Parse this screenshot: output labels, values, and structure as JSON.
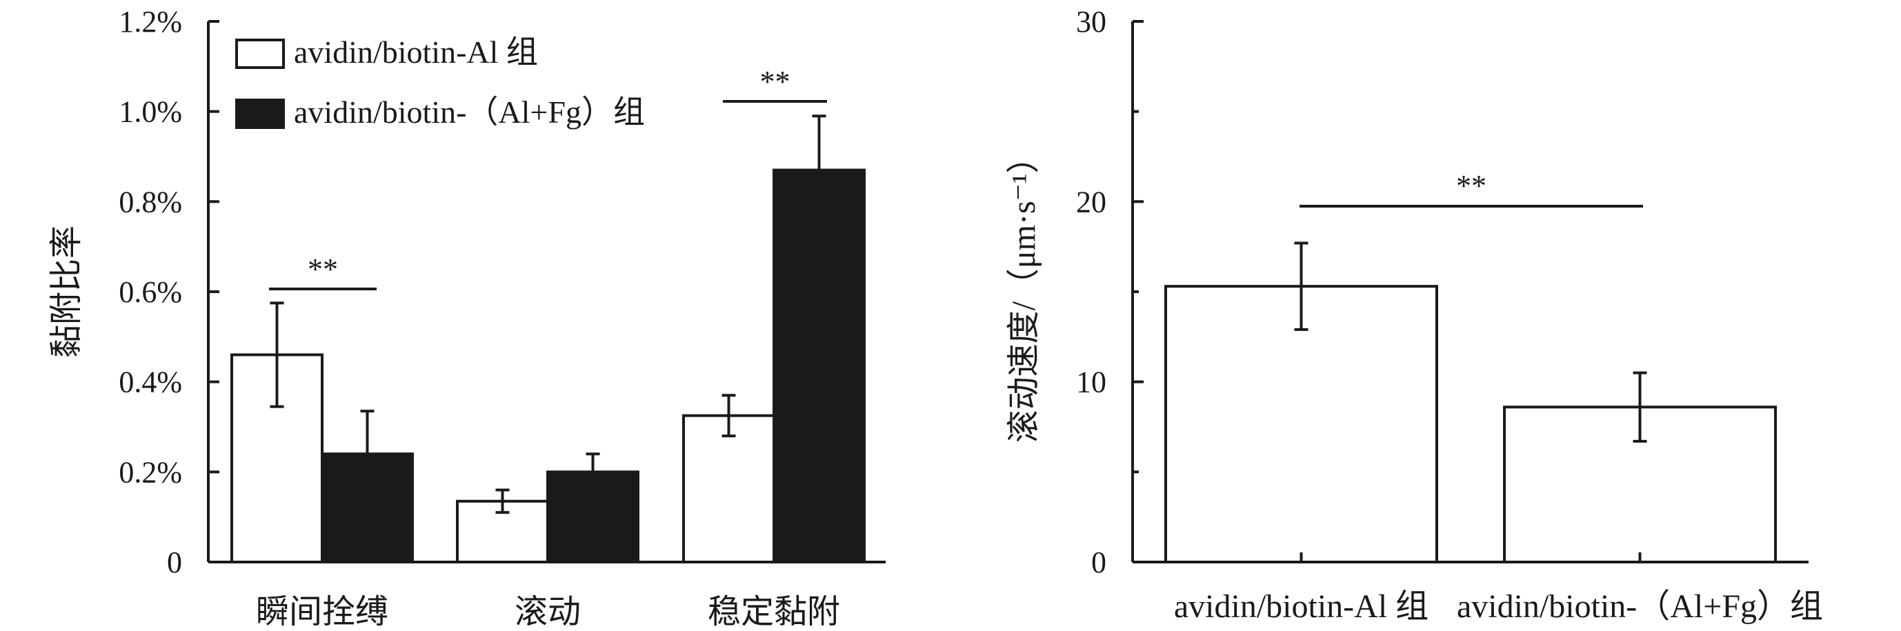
{
  "colors": {
    "ink": "#1a1a1a",
    "open_bar": "#ffffff",
    "filled_bar": "#1a1a1a"
  },
  "chart_data": [
    {
      "type": "bar",
      "ylabel": "黏附比率",
      "ylim": [
        0,
        1.2
      ],
      "yticks": [
        "0",
        "0.2%",
        "0.4%",
        "0.6%",
        "0.8%",
        "1.0%",
        "1.2%"
      ],
      "categories": [
        "瞬间拴缚",
        "滚动",
        "稳定黏附"
      ],
      "legend_position": "top-left",
      "series": [
        {
          "name": "avidin/biotin-Al 组",
          "style": "open",
          "values": [
            0.46,
            0.135,
            0.325
          ],
          "errors": [
            0.115,
            0.025,
            0.045
          ]
        },
        {
          "name": "avidin/biotin-（Al+Fg）组",
          "style": "filled",
          "values": [
            0.24,
            0.2,
            0.87
          ],
          "errors": [
            0.095,
            0.04,
            0.12
          ]
        }
      ],
      "annotations": [
        {
          "text": "**",
          "category": "瞬间拴缚"
        },
        {
          "text": "**",
          "category": "稳定黏附"
        }
      ]
    },
    {
      "type": "bar",
      "ylabel": "滚动速度/（μm·s⁻¹）",
      "ylim": [
        0,
        30
      ],
      "yticks": [
        "0",
        "10",
        "20",
        "30"
      ],
      "categories": [
        "avidin/biotin-Al 组",
        "avidin/biotin-（Al+Fg）组"
      ],
      "series": [
        {
          "style": "open",
          "values": [
            15.3,
            8.6
          ],
          "errors": [
            2.4,
            1.9
          ]
        }
      ],
      "annotations": [
        {
          "text": "**",
          "between": [
            "avidin/biotin-Al 组",
            "avidin/biotin-（Al+Fg）组"
          ]
        }
      ]
    }
  ]
}
